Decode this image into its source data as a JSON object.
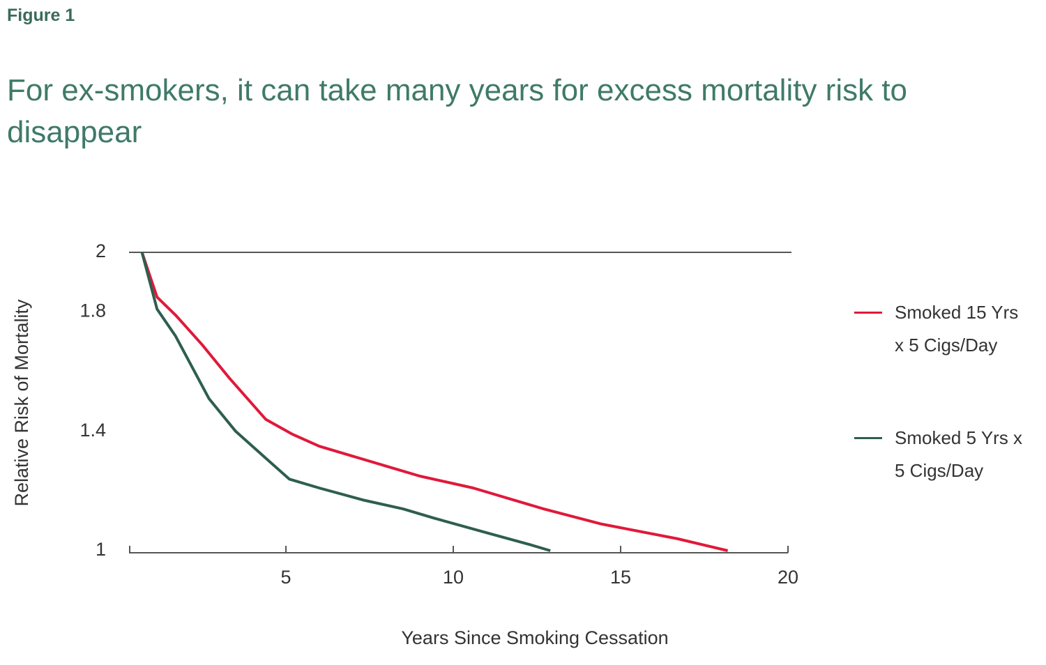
{
  "chart_data": {
    "type": "line",
    "label": "Figure 1",
    "title": "For ex-smokers, it can take many years for excess mortality risk to disappear",
    "x_label": "Years Since Smoking Cessation",
    "y_label": "Relative Risk of Mortality",
    "xlim": [
      0,
      20
    ],
    "xticks": [
      5,
      10,
      15,
      20
    ],
    "ylim": [
      1,
      2
    ],
    "yticks": [
      1,
      1.4,
      1.8,
      2
    ],
    "grid": false,
    "legend": "right",
    "series": [
      {
        "name": "Smoked 15 Yrs x 5 Cigs/Day",
        "color": "#e0193a",
        "x": [
          0.7,
          1.15,
          1.7,
          2.5,
          3.3,
          4.4,
          5.2,
          6.0,
          8.1,
          9.0,
          10.6,
          12.7,
          14.4,
          16.7,
          18.2
        ],
        "values": [
          2,
          1.85,
          1.79,
          1.69,
          1.58,
          1.44,
          1.39,
          1.35,
          1.28,
          1.25,
          1.21,
          1.14,
          1.09,
          1.04,
          1.0
        ]
      },
      {
        "name": "Smoked 5 Yrs x 5 Cigs/Day",
        "color": "#2e5e4e",
        "x": [
          0.7,
          1.15,
          1.7,
          2.7,
          3.5,
          4.4,
          5.1,
          6.0,
          7.3,
          8.5,
          9.4,
          11.0,
          12.3,
          12.9
        ],
        "values": [
          2,
          1.81,
          1.72,
          1.51,
          1.4,
          1.31,
          1.24,
          1.21,
          1.17,
          1.14,
          1.11,
          1.06,
          1.02,
          1.0
        ]
      }
    ]
  }
}
